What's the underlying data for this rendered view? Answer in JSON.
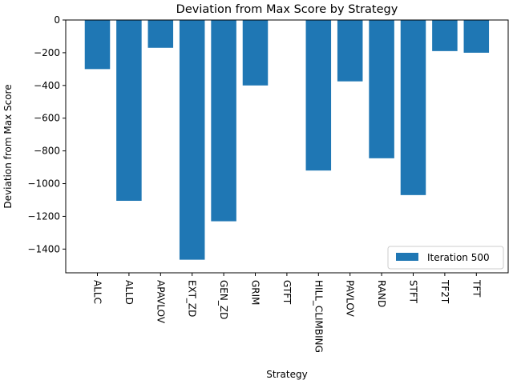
{
  "chart_data": {
    "type": "bar",
    "title": "Deviation from Max Score by Strategy",
    "xlabel": "Strategy",
    "ylabel": "Deviation from Max Score",
    "categories": [
      "ALLC",
      "ALLD",
      "APAVLOV",
      "EXT_ZD",
      "GEN_ZD",
      "GRIM",
      "GTFT",
      "HILL_CLIMBING",
      "PAVLOV",
      "RAND",
      "STFT",
      "TF2T",
      "TFT"
    ],
    "series": [
      {
        "name": "Iteration 500",
        "color": "#1f77b4",
        "values": [
          -300,
          -1105,
          -170,
          -1465,
          -1230,
          -400,
          0,
          -920,
          -375,
          -845,
          -1070,
          -190,
          -200
        ]
      }
    ],
    "ylim": [
      -1545,
      0
    ],
    "yticks": [
      0,
      -200,
      -400,
      -600,
      -800,
      -1000,
      -1200,
      -1400
    ],
    "ytick_labels": [
      "0",
      "−200",
      "−400",
      "−600",
      "−800",
      "−1000",
      "−1200",
      "−1400"
    ],
    "legend_position": "lower right",
    "grid": false
  }
}
